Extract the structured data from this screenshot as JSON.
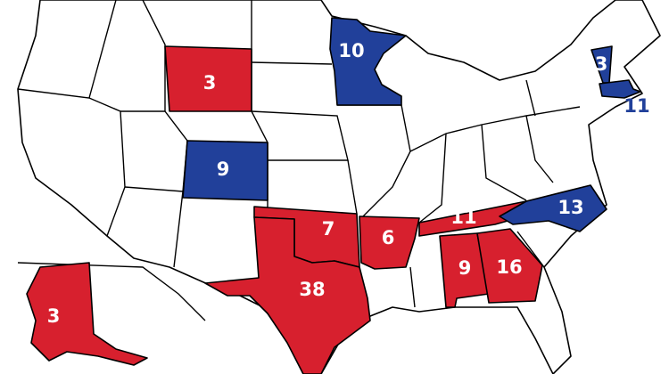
{
  "colors": {
    "red": "#d7202e",
    "blue": "#21409a",
    "uncolored": "#ffffff"
  },
  "states": [
    {
      "id": "WY",
      "party": "red",
      "votes": "3"
    },
    {
      "id": "CO",
      "party": "blue",
      "votes": "9"
    },
    {
      "id": "MN",
      "party": "blue",
      "votes": "10"
    },
    {
      "id": "OK",
      "party": "red",
      "votes": "7"
    },
    {
      "id": "TX",
      "party": "red",
      "votes": "38"
    },
    {
      "id": "AR",
      "party": "red",
      "votes": "6"
    },
    {
      "id": "TN",
      "party": "red",
      "votes": "11"
    },
    {
      "id": "NC",
      "party": "blue",
      "votes": "13"
    },
    {
      "id": "AL",
      "party": "red",
      "votes": "9"
    },
    {
      "id": "GA",
      "party": "red",
      "votes": "16"
    },
    {
      "id": "AK",
      "party": "red",
      "votes": "3"
    },
    {
      "id": "VT",
      "party": "blue",
      "votes": "3"
    },
    {
      "id": "MA",
      "party": "blue",
      "votes": "11"
    }
  ]
}
